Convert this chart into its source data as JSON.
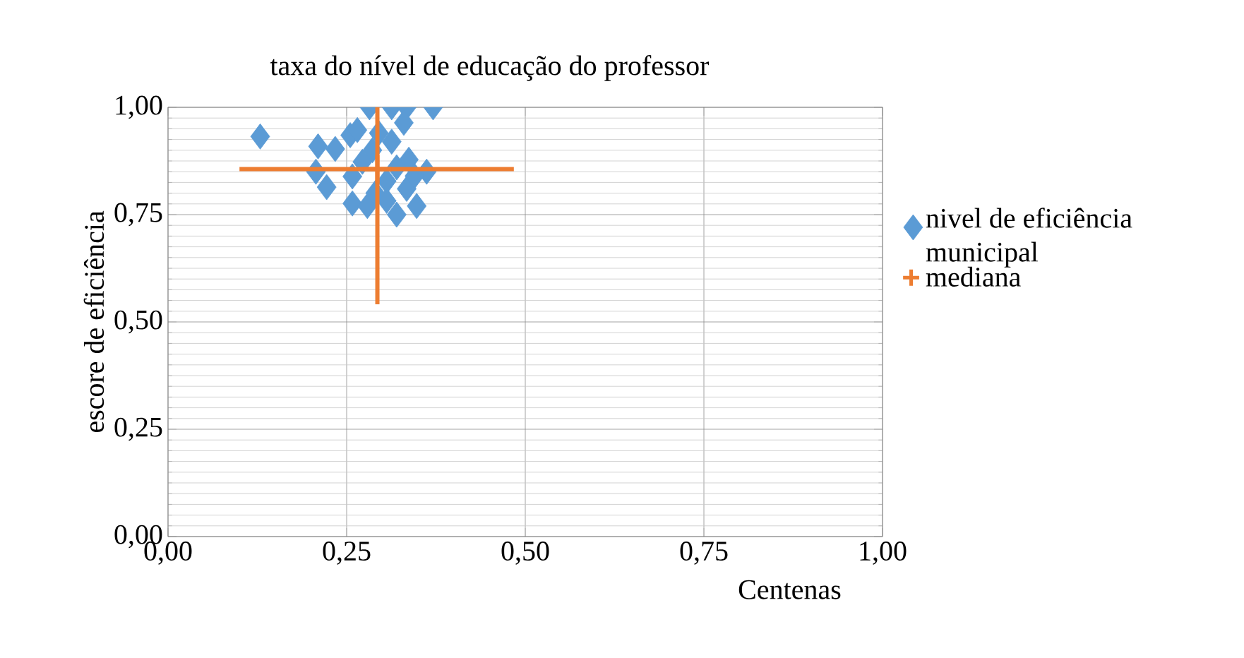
{
  "chart_data": {
    "type": "scatter",
    "title": "taxa do nível de educação do professor",
    "xlabel": "Centenas",
    "ylabel": "escore de eficiência",
    "xlim": [
      0,
      1
    ],
    "ylim": [
      0,
      1
    ],
    "xticks": [
      {
        "value": 0,
        "label": "0,00"
      },
      {
        "value": 0.25,
        "label": "0,25"
      },
      {
        "value": 0.5,
        "label": "0,50"
      },
      {
        "value": 0.75,
        "label": "0,75"
      },
      {
        "value": 1,
        "label": "1,00"
      }
    ],
    "yticks": [
      {
        "value": 0,
        "label": "0,00"
      },
      {
        "value": 0.25,
        "label": "0,25"
      },
      {
        "value": 0.5,
        "label": "0,50"
      },
      {
        "value": 0.75,
        "label": "0,75"
      },
      {
        "value": 1,
        "label": "1,00"
      }
    ],
    "grid": true,
    "legend": "right",
    "series": [
      {
        "name": "nivel de eficiência municipal",
        "color": "#5b9bd5",
        "marker": "diamond",
        "x": [
          0.129,
          0.371,
          0.282,
          0.313,
          0.334,
          0.33,
          0.21,
          0.234,
          0.255,
          0.265,
          0.313,
          0.207,
          0.222,
          0.258,
          0.279,
          0.32,
          0.348,
          0.362,
          0.337,
          0.258,
          0.306,
          0.272,
          0.334,
          0.286,
          0.306,
          0.295,
          0.32,
          0.29,
          0.345
        ],
        "values": [
          0.932,
          1.0,
          1.0,
          1.0,
          1.0,
          0.964,
          0.909,
          0.903,
          0.935,
          0.947,
          0.92,
          0.85,
          0.814,
          0.776,
          0.77,
          0.75,
          0.77,
          0.85,
          0.878,
          0.839,
          0.782,
          0.873,
          0.81,
          0.9,
          0.828,
          0.94,
          0.86,
          0.8,
          0.84
        ]
      },
      {
        "name": "mediana",
        "color": "#ed7d31",
        "marker": "cross",
        "x": [
          0.293
        ],
        "values": [
          0.856
        ],
        "errors": [
          [
            0.541,
            1.0
          ]
        ],
        "xerrors": [
          [
            0.1,
            0.484
          ]
        ]
      }
    ]
  }
}
